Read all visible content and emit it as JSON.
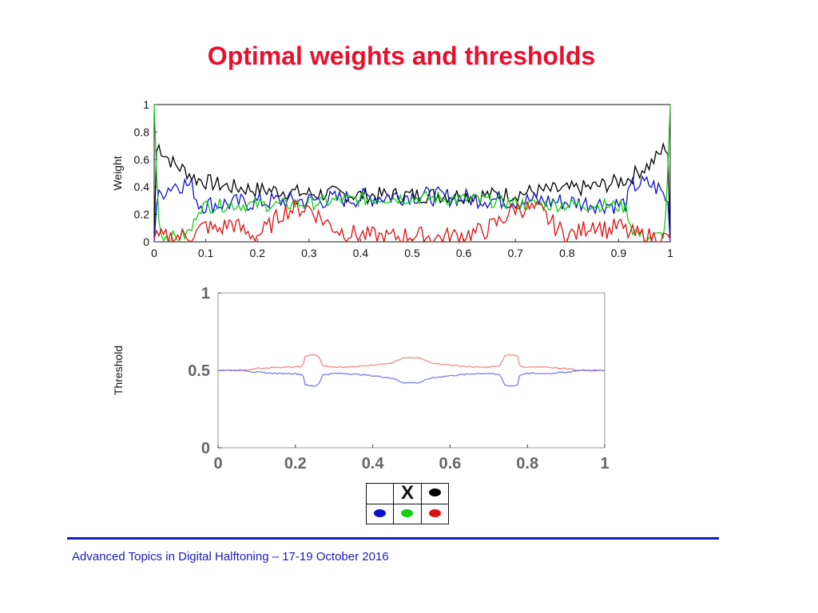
{
  "slide": {
    "title": "Optimal weights and thresholds",
    "footer": "Advanced Topics in Digital Halftoning – 17-19 October 2016"
  },
  "legend": {
    "cells": [
      {
        "label": "",
        "kind": "empty"
      },
      {
        "label": "X",
        "kind": "text"
      },
      {
        "label": "",
        "kind": "dot",
        "color": "#000000"
      },
      {
        "label": "",
        "kind": "dot",
        "color": "#1010d0"
      },
      {
        "label": "",
        "kind": "dot",
        "color": "#10d010"
      },
      {
        "label": "",
        "kind": "dot",
        "color": "#dd1010"
      }
    ]
  },
  "chart_data": [
    {
      "type": "line",
      "title": "",
      "xlabel": "",
      "ylabel": "Weight",
      "xlim": [
        0,
        1
      ],
      "ylim": [
        0,
        1
      ],
      "xticks": [
        0,
        0.1,
        0.2,
        0.3,
        0.4,
        0.5,
        0.6,
        0.7,
        0.8,
        0.9,
        1
      ],
      "xtick_labels": [
        "0",
        "0.1",
        "0.2",
        "0.3",
        "0.4",
        "0.5",
        "0.6",
        "0.7",
        "0.8",
        "0.9",
        "1"
      ],
      "yticks": [
        0,
        0.2,
        0.4,
        0.6,
        0.8,
        1
      ],
      "ytick_labels": [
        "0",
        "0.2",
        "0.4",
        "0.6",
        "0.8",
        "1"
      ],
      "grid": false,
      "series": [
        {
          "color": "#000000",
          "x": [
            0,
            0.005,
            0.02,
            0.04,
            0.06,
            0.08,
            0.1,
            0.12,
            0.15,
            0.2,
            0.25,
            0.3,
            0.35,
            0.4,
            0.45,
            0.5,
            0.55,
            0.6,
            0.65,
            0.7,
            0.75,
            0.8,
            0.85,
            0.88,
            0.9,
            0.92,
            0.94,
            0.96,
            0.98,
            0.995,
            1
          ],
          "y": [
            0.05,
            0.72,
            0.64,
            0.56,
            0.52,
            0.46,
            0.44,
            0.42,
            0.4,
            0.38,
            0.37,
            0.35,
            0.35,
            0.34,
            0.34,
            0.34,
            0.34,
            0.34,
            0.34,
            0.35,
            0.37,
            0.38,
            0.4,
            0.42,
            0.44,
            0.46,
            0.52,
            0.56,
            0.64,
            0.72,
            0.05
          ]
        },
        {
          "color": "#1010d0",
          "x": [
            0,
            0.005,
            0.02,
            0.04,
            0.06,
            0.075,
            0.085,
            0.1,
            0.15,
            0.2,
            0.25,
            0.3,
            0.35,
            0.4,
            0.45,
            0.5,
            0.55,
            0.6,
            0.65,
            0.7,
            0.75,
            0.8,
            0.85,
            0.9,
            0.915,
            0.925,
            0.94,
            0.96,
            0.98,
            0.995,
            1
          ],
          "y": [
            0,
            0.3,
            0.38,
            0.42,
            0.42,
            0.4,
            0.28,
            0.27,
            0.28,
            0.29,
            0.3,
            0.3,
            0.31,
            0.32,
            0.33,
            0.34,
            0.33,
            0.32,
            0.31,
            0.3,
            0.3,
            0.29,
            0.28,
            0.27,
            0.28,
            0.4,
            0.42,
            0.42,
            0.38,
            0.3,
            0
          ]
        },
        {
          "color": "#10d010",
          "x": [
            0,
            0.004,
            0.01,
            0.02,
            0.04,
            0.06,
            0.075,
            0.085,
            0.1,
            0.15,
            0.2,
            0.25,
            0.3,
            0.35,
            0.4,
            0.45,
            0.5,
            0.55,
            0.6,
            0.65,
            0.7,
            0.75,
            0.8,
            0.85,
            0.9,
            0.915,
            0.925,
            0.94,
            0.96,
            0.98,
            0.99,
            0.996,
            1
          ],
          "y": [
            1,
            0.6,
            0.08,
            0.04,
            0.03,
            0.05,
            0.1,
            0.25,
            0.26,
            0.27,
            0.27,
            0.27,
            0.28,
            0.3,
            0.31,
            0.32,
            0.32,
            0.32,
            0.31,
            0.3,
            0.28,
            0.27,
            0.27,
            0.27,
            0.26,
            0.25,
            0.1,
            0.05,
            0.03,
            0.04,
            0.08,
            0.6,
            1
          ]
        },
        {
          "color": "#dd1010",
          "x": [
            0,
            0.02,
            0.05,
            0.08,
            0.1,
            0.12,
            0.15,
            0.18,
            0.2,
            0.22,
            0.24,
            0.25,
            0.27,
            0.3,
            0.33,
            0.36,
            0.4,
            0.45,
            0.5,
            0.55,
            0.6,
            0.64,
            0.67,
            0.7,
            0.73,
            0.75,
            0.76,
            0.78,
            0.8,
            0.82,
            0.85,
            0.88,
            0.9,
            0.92,
            0.95,
            0.98,
            1
          ],
          "y": [
            0.02,
            0.03,
            0.04,
            0.06,
            0.12,
            0.08,
            0.14,
            0.06,
            0.05,
            0.1,
            0.18,
            0.22,
            0.24,
            0.25,
            0.15,
            0.08,
            0.05,
            0.03,
            0.05,
            0.03,
            0.05,
            0.08,
            0.15,
            0.25,
            0.24,
            0.22,
            0.18,
            0.1,
            0.05,
            0.06,
            0.14,
            0.08,
            0.12,
            0.06,
            0.04,
            0.03,
            0.02
          ]
        }
      ]
    },
    {
      "type": "line",
      "title": "",
      "xlabel": "",
      "ylabel": "Threshold",
      "xlim": [
        0,
        1
      ],
      "ylim": [
        0,
        1
      ],
      "xticks": [
        0,
        0.2,
        0.4,
        0.6,
        0.8,
        1
      ],
      "xtick_labels": [
        "0",
        "0.2",
        "0.4",
        "0.6",
        "0.8",
        "1"
      ],
      "yticks": [
        0,
        0.5,
        1
      ],
      "ytick_labels": [
        "0",
        "0.5",
        "1"
      ],
      "grid": false,
      "series": [
        {
          "color": "#f08080",
          "x": [
            0,
            0.07,
            0.09,
            0.15,
            0.2,
            0.22,
            0.225,
            0.235,
            0.25,
            0.26,
            0.27,
            0.3,
            0.33,
            0.38,
            0.42,
            0.45,
            0.48,
            0.5,
            0.52,
            0.55,
            0.58,
            0.62,
            0.67,
            0.7,
            0.73,
            0.74,
            0.75,
            0.765,
            0.775,
            0.78,
            0.8,
            0.85,
            0.91,
            0.93,
            1
          ],
          "y": [
            0.5,
            0.5,
            0.51,
            0.52,
            0.52,
            0.53,
            0.59,
            0.6,
            0.6,
            0.59,
            0.53,
            0.52,
            0.52,
            0.53,
            0.54,
            0.55,
            0.58,
            0.58,
            0.58,
            0.55,
            0.54,
            0.53,
            0.52,
            0.52,
            0.53,
            0.59,
            0.6,
            0.6,
            0.59,
            0.53,
            0.52,
            0.52,
            0.51,
            0.5,
            0.5
          ]
        },
        {
          "color": "#7070f0",
          "x": [
            0,
            0.07,
            0.09,
            0.15,
            0.2,
            0.22,
            0.225,
            0.235,
            0.25,
            0.26,
            0.27,
            0.3,
            0.33,
            0.38,
            0.42,
            0.45,
            0.48,
            0.5,
            0.52,
            0.55,
            0.58,
            0.62,
            0.67,
            0.7,
            0.73,
            0.74,
            0.75,
            0.765,
            0.775,
            0.78,
            0.8,
            0.85,
            0.91,
            0.93,
            1
          ],
          "y": [
            0.5,
            0.5,
            0.49,
            0.48,
            0.48,
            0.47,
            0.41,
            0.4,
            0.4,
            0.41,
            0.47,
            0.48,
            0.48,
            0.47,
            0.46,
            0.45,
            0.42,
            0.42,
            0.42,
            0.45,
            0.46,
            0.47,
            0.48,
            0.48,
            0.47,
            0.41,
            0.4,
            0.4,
            0.41,
            0.47,
            0.48,
            0.48,
            0.49,
            0.5,
            0.5
          ]
        }
      ]
    }
  ]
}
